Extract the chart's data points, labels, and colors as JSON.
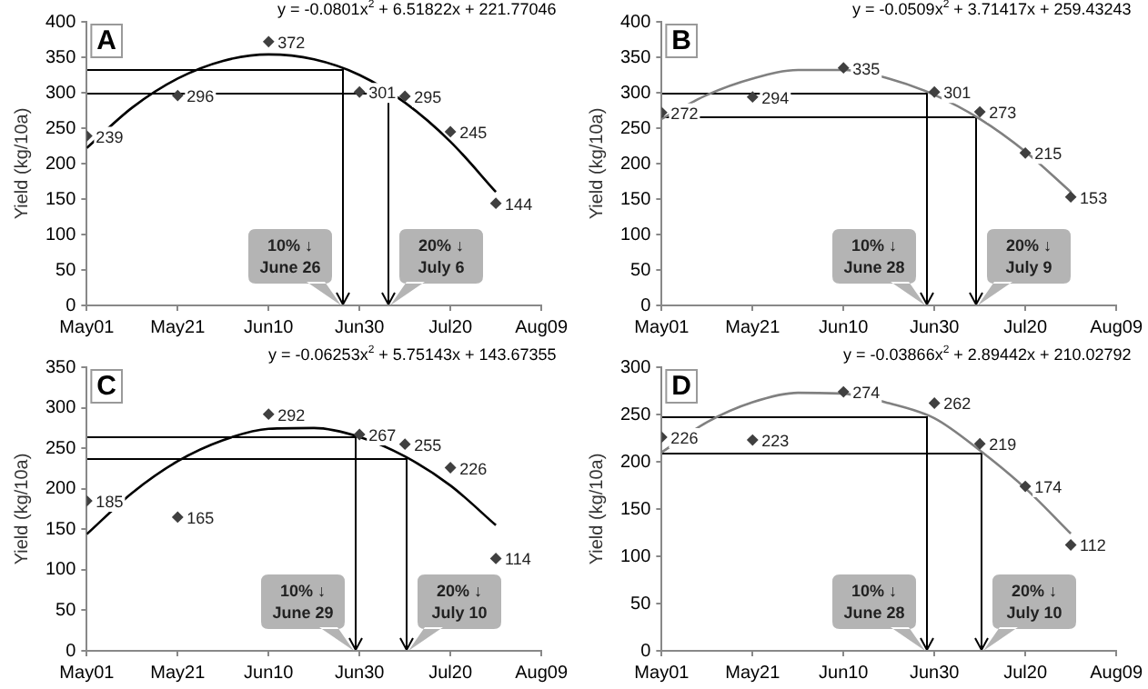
{
  "chart_data": [
    {
      "type": "scatter",
      "title": "A",
      "ylabel": "Yield (kg/10a)",
      "legend": false,
      "grid": false,
      "xlim": [
        "--05-01",
        "--08-09"
      ],
      "xticks": [
        {
          "value": "--05-01",
          "label": "May01"
        },
        {
          "value": "--05-21",
          "label": "May21"
        },
        {
          "value": "--06-10",
          "label": "Jun10"
        },
        {
          "value": "--06-30",
          "label": "Jun30"
        },
        {
          "value": "--07-20",
          "label": "Jul20"
        },
        {
          "value": "--08-09",
          "label": "Aug09"
        }
      ],
      "ylim": [
        0,
        400
      ],
      "yticks": [
        0,
        50,
        100,
        150,
        200,
        250,
        300,
        350,
        400
      ],
      "series": [
        {
          "color": "#404040",
          "marker": "diamond",
          "x": [
            "--05-01",
            "--05-21",
            "--06-10",
            "--06-30",
            "--07-10",
            "--07-20",
            "--07-30"
          ],
          "values": [
            239,
            296,
            372,
            301,
            295,
            245,
            144
          ],
          "value_labels": [
            "239",
            "296",
            "372",
            "301",
            "295",
            "245",
            "144"
          ]
        },
        {
          "type": "line",
          "color": "#000000",
          "marker": "none",
          "x": [
            "--05-01",
            "--05-11",
            "--05-21",
            "--05-31",
            "--06-10",
            "--06-20",
            "--06-30",
            "--07-10",
            "--07-20",
            "--07-30"
          ],
          "values": [
            222,
            279,
            320,
            345,
            354,
            347,
            325,
            286,
            231,
            160
          ]
        }
      ],
      "annotations": [
        "y = -0.0801x$^{2}$ + 6.51822x + 221.77046"
      ],
      "ref_lines": [
        {
          "axis": "x",
          "value": "--06-26",
          "label": "10% ↓\nJune 26"
        },
        {
          "axis": "x",
          "value": "--07-06",
          "label": "20% ↓\nJuly 6"
        }
      ]
    },
    {
      "type": "scatter",
      "title": "B",
      "ylabel": "Yield (kg/10a)",
      "legend": false,
      "grid": false,
      "xlim": [
        "--05-01",
        "--08-09"
      ],
      "xticks": [
        {
          "value": "--05-01",
          "label": "May01"
        },
        {
          "value": "--05-21",
          "label": "May21"
        },
        {
          "value": "--06-10",
          "label": "Jun10"
        },
        {
          "value": "--06-30",
          "label": "Jun30"
        },
        {
          "value": "--07-20",
          "label": "Jul20"
        },
        {
          "value": "--08-09",
          "label": "Aug09"
        }
      ],
      "ylim": [
        0,
        400
      ],
      "yticks": [
        0,
        50,
        100,
        150,
        200,
        250,
        300,
        350,
        400
      ],
      "series": [
        {
          "color": "#404040",
          "marker": "diamond",
          "x": [
            "--05-01",
            "--05-21",
            "--06-10",
            "--06-30",
            "--07-10",
            "--07-20",
            "--07-30"
          ],
          "values": [
            272,
            294,
            335,
            301,
            273,
            215,
            153
          ],
          "value_labels": [
            "272",
            "294",
            "335",
            "301",
            "273",
            "215",
            "153"
          ]
        },
        {
          "type": "line",
          "color": "#808080",
          "marker": "none",
          "x": [
            "--05-01",
            "--05-11",
            "--05-21",
            "--05-31",
            "--06-10",
            "--06-20",
            "--06-30",
            "--07-10",
            "--07-20",
            "--07-30"
          ],
          "values": [
            263,
            297,
            320,
            332,
            332,
            320,
            297,
            263,
            217,
            160
          ]
        }
      ],
      "annotations": [
        "y = -0.0509x$^{2}$ + 3.71417x + 259.43243"
      ],
      "ref_lines": [
        {
          "axis": "x",
          "value": "--06-28",
          "label": "10% ↓\nJune 28"
        },
        {
          "axis": "x",
          "value": "--07-09",
          "label": "20% ↓\nJuly 9"
        }
      ]
    },
    {
      "type": "scatter",
      "title": "C",
      "ylabel": "Yield (kg/10a)",
      "legend": false,
      "grid": false,
      "xlim": [
        "--05-01",
        "--08-09"
      ],
      "xticks": [
        {
          "value": "--05-01",
          "label": "May01"
        },
        {
          "value": "--05-21",
          "label": "May21"
        },
        {
          "value": "--06-10",
          "label": "Jun10"
        },
        {
          "value": "--06-30",
          "label": "Jun30"
        },
        {
          "value": "--07-20",
          "label": "Jul20"
        },
        {
          "value": "--08-09",
          "label": "Aug09"
        }
      ],
      "ylim": [
        0,
        350
      ],
      "yticks": [
        0,
        50,
        100,
        150,
        200,
        250,
        300,
        350
      ],
      "series": [
        {
          "color": "#404040",
          "marker": "diamond",
          "x": [
            "--05-01",
            "--05-21",
            "--06-10",
            "--06-30",
            "--07-10",
            "--07-20",
            "--07-30"
          ],
          "values": [
            185,
            165,
            292,
            267,
            255,
            226,
            114
          ],
          "value_labels": [
            "185",
            "165",
            "292",
            "267",
            "255",
            "226",
            "114"
          ]
        },
        {
          "type": "line",
          "color": "#000000",
          "marker": "none",
          "x": [
            "--05-01",
            "--05-11",
            "--05-21",
            "--05-31",
            "--06-10",
            "--06-20",
            "--06-30",
            "--07-10",
            "--07-20",
            "--07-30"
          ],
          "values": [
            144,
            195,
            234,
            260,
            274,
            275,
            264,
            240,
            204,
            155
          ]
        }
      ],
      "annotations": [
        "y = -0.06253x$^{2}$ + 5.75143x + 143.67355"
      ],
      "ref_lines": [
        {
          "axis": "x",
          "value": "--06-29",
          "label": "10% ↓\nJune 29"
        },
        {
          "axis": "x",
          "value": "--07-10",
          "label": "20% ↓\nJuly 10"
        }
      ]
    },
    {
      "type": "scatter",
      "title": "D",
      "ylabel": "Yield (kg/10a)",
      "legend": false,
      "grid": false,
      "xlim": [
        "--05-01",
        "--08-09"
      ],
      "xticks": [
        {
          "value": "--05-01",
          "label": "May01"
        },
        {
          "value": "--05-21",
          "label": "May21"
        },
        {
          "value": "--06-10",
          "label": "Jun10"
        },
        {
          "value": "--06-30",
          "label": "Jun30"
        },
        {
          "value": "--07-20",
          "label": "Jul20"
        },
        {
          "value": "--08-09",
          "label": "Aug09"
        }
      ],
      "ylim": [
        0,
        300
      ],
      "yticks": [
        0,
        50,
        100,
        150,
        200,
        250,
        300
      ],
      "series": [
        {
          "color": "#404040",
          "marker": "diamond",
          "x": [
            "--05-01",
            "--05-21",
            "--06-10",
            "--06-30",
            "--07-10",
            "--07-20",
            "--07-30"
          ],
          "values": [
            226,
            223,
            274,
            262,
            219,
            174,
            112
          ],
          "value_labels": [
            "226",
            "223",
            "274",
            "262",
            "219",
            "174",
            "112"
          ]
        },
        {
          "type": "line",
          "color": "#808080",
          "marker": "none",
          "x": [
            "--05-01",
            "--05-11",
            "--05-21",
            "--05-31",
            "--06-10",
            "--06-20",
            "--06-30",
            "--07-10",
            "--07-20",
            "--07-30"
          ],
          "values": [
            210,
            242,
            263,
            273,
            272,
            262,
            246,
            212,
            172,
            124
          ]
        }
      ],
      "annotations": [
        "y = -0.03866x$^{2}$ + 2.89442x + 210.02792"
      ],
      "ref_lines": [
        {
          "axis": "x",
          "value": "--06-28",
          "label": "10% ↓\nJune 28"
        },
        {
          "axis": "x",
          "value": "--07-10",
          "label": "20% ↓\nJuly 10"
        }
      ]
    }
  ]
}
